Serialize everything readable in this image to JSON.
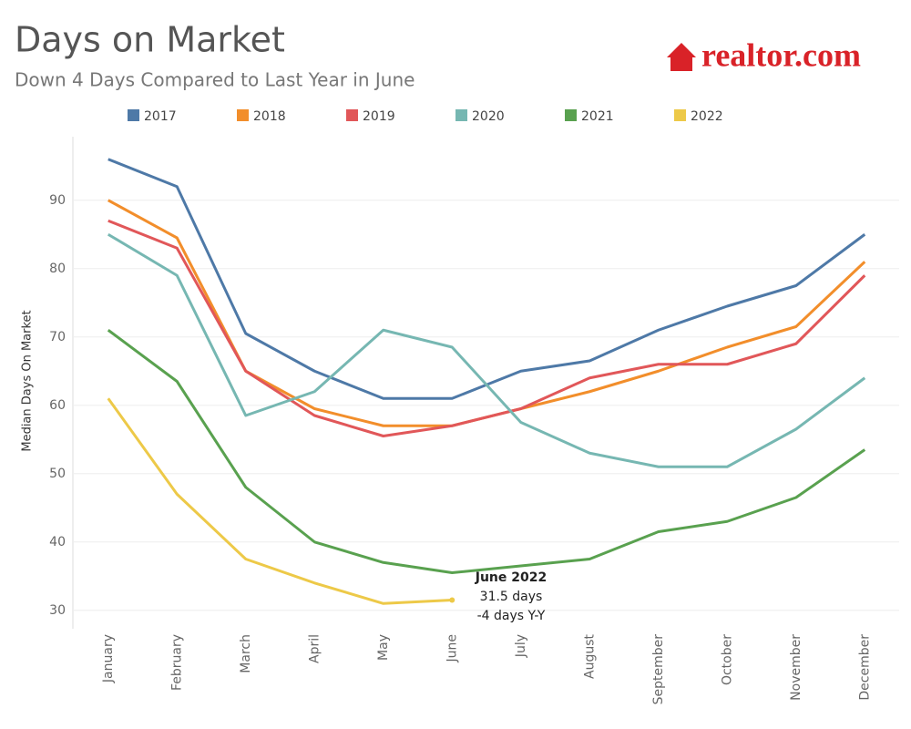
{
  "chart_data": {
    "type": "line",
    "title": "Days on Market",
    "subtitle": "Down 4 Days Compared to Last Year in June",
    "logo": "realtor.com",
    "y_label": "Median Days On Market",
    "categories": [
      "January",
      "February",
      "March",
      "April",
      "May",
      "June",
      "July",
      "August",
      "September",
      "October",
      "November",
      "December"
    ],
    "series": [
      {
        "name": "2017",
        "color": "#4e79a7",
        "values": [
          96,
          92,
          70.5,
          65,
          61,
          61,
          65,
          66.5,
          71,
          74.5,
          77.5,
          85
        ]
      },
      {
        "name": "2018",
        "color": "#f28e2b",
        "values": [
          90,
          84.5,
          65,
          59.5,
          57,
          57,
          59.5,
          62,
          65,
          68.5,
          71.5,
          81
        ]
      },
      {
        "name": "2019",
        "color": "#e15759",
        "values": [
          87,
          83,
          65,
          58.5,
          55.5,
          57,
          59.5,
          64,
          66,
          66,
          69,
          79
        ]
      },
      {
        "name": "2020",
        "color": "#76b7b2",
        "values": [
          85,
          79,
          58.5,
          62,
          71,
          68.5,
          57.5,
          53,
          51,
          51,
          56.5,
          64
        ]
      },
      {
        "name": "2021",
        "color": "#59a14f",
        "values": [
          71,
          63.5,
          48,
          40,
          37,
          35.5,
          36.5,
          37.5,
          41.5,
          43,
          46.5,
          53.5
        ]
      },
      {
        "name": "2022",
        "color": "#edc948",
        "values": [
          61,
          47,
          37.5,
          34,
          31,
          31.5,
          null,
          null,
          null,
          null,
          null,
          null
        ]
      }
    ],
    "ylim": [
      27.3,
      99.3
    ],
    "yticks": [
      30,
      40,
      50,
      60,
      70,
      80,
      90
    ],
    "grid": true,
    "annotation": [
      "June 2022",
      "31.5 days",
      "-4 days Y-Y"
    ]
  }
}
